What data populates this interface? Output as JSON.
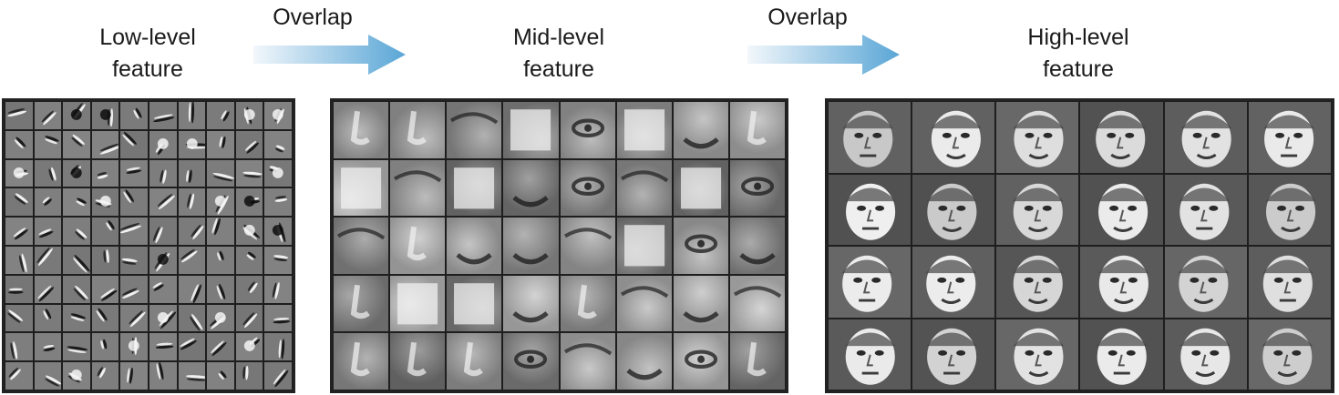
{
  "stages": [
    {
      "line1": "Low-level",
      "line2": "feature"
    },
    {
      "line1": "Mid-level",
      "line2": "feature"
    },
    {
      "line1": "High-level",
      "line2": "feature"
    }
  ],
  "connectors": [
    {
      "label": "Overlap"
    },
    {
      "label": "Overlap"
    }
  ],
  "colors": {
    "arrow_light": "#f2f7fb",
    "arrow_dark": "#5aa6d6",
    "grid_line": "#1e1e1e"
  },
  "icons": [
    "gradient-arrow-icon"
  ]
}
